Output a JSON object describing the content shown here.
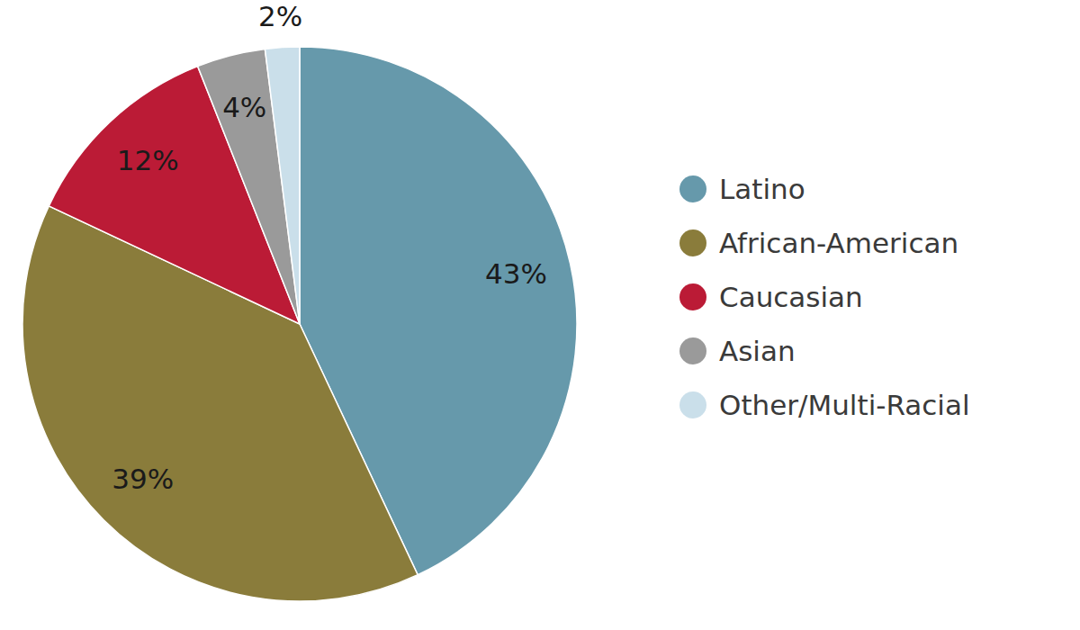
{
  "chart_data": {
    "type": "pie",
    "categories": [
      "Latino",
      "African-American",
      "Caucasian",
      "Asian",
      "Other/Multi-Racial"
    ],
    "values": [
      43,
      39,
      12,
      4,
      2
    ],
    "value_labels": [
      "43%",
      "39%",
      "12%",
      "4%",
      "2%"
    ],
    "colors": [
      "#6699ab",
      "#8a7c3b",
      "#bb1b36",
      "#9a9a9a",
      "#cadfea"
    ],
    "data_labels": true,
    "legend": "right"
  }
}
